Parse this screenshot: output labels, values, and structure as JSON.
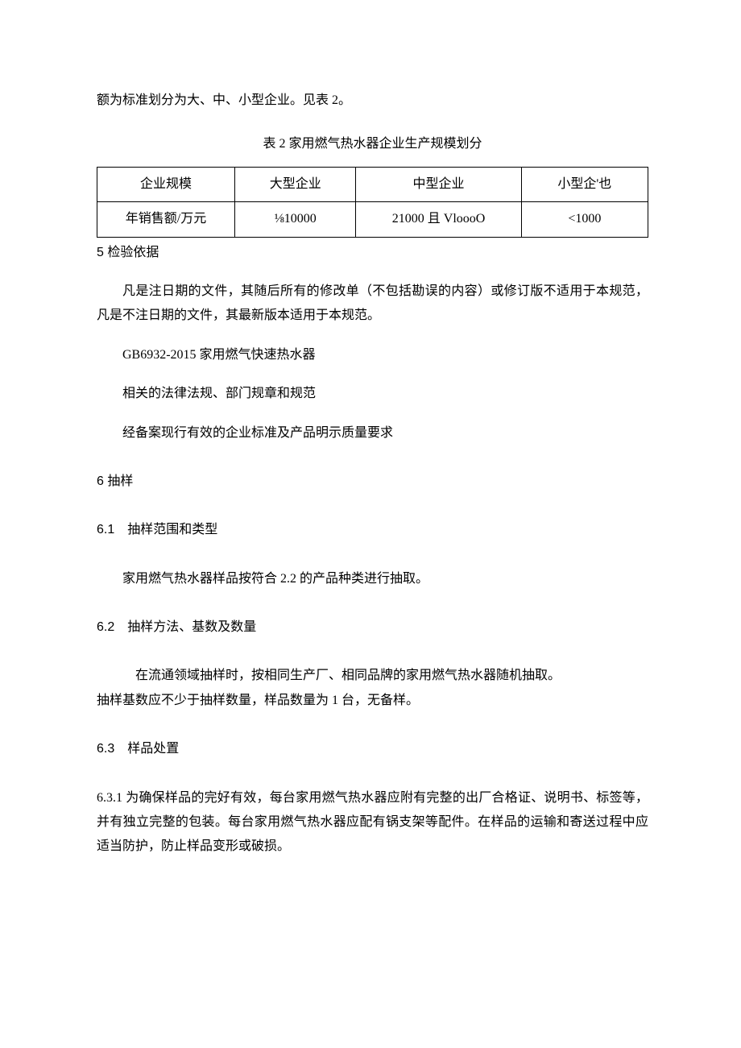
{
  "intro_line": "额为标准划分为大、中、小型企业。见表 2。",
  "table_caption": "表 2 家用燃气热水器企业生产规模划分",
  "table": {
    "rows": [
      [
        "企业规模",
        "大型企业",
        "中型企业",
        "小型企'也"
      ],
      [
        "年销售额/万元",
        "⅛10000",
        "21000 且 VloooO",
        "<1000"
      ]
    ],
    "col_widths": [
      "25%",
      "22%",
      "30%",
      "23%"
    ]
  },
  "sec5_head": "5 检验依据",
  "sec5_p1": "凡是注日期的文件，其随后所有的修改单（不包括勘误的内容）或修订版不适用于本规范，凡是不注日期的文件，其最新版本适用于本规范。",
  "sec5_p2": "GB6932-2015 家用燃气快速热水器",
  "sec5_p3": "相关的法律法规、部门规章和规范",
  "sec5_p4": "经备案现行有效的企业标准及产品明示质量要求",
  "sec6_head": "6 抽样",
  "sec6_1_head": "6.1 抽样范围和类型",
  "sec6_1_p1": "家用燃气热水器样品按符合 2.2 的产品种类进行抽取。",
  "sec6_2_head": "6.2 抽样方法、基数及数量",
  "sec6_2_p1": "在流通领域抽样时，按相同生产厂、相同品牌的家用燃气热水器随机抽取。",
  "sec6_2_p2": "抽样基数应不少于抽样数量，样品数量为 1 台，无备样。",
  "sec6_3_head": "6.3 样品处置",
  "sec6_3_1": "6.3.1 为确保样品的完好有效，每台家用燃气热水器应附有完整的出厂合格证、说明书、标签等，并有独立完整的包装。每台家用燃气热水器应配有锅支架等配件。在样品的运输和寄送过程中应适当防护，防止样品变形或破损。"
}
